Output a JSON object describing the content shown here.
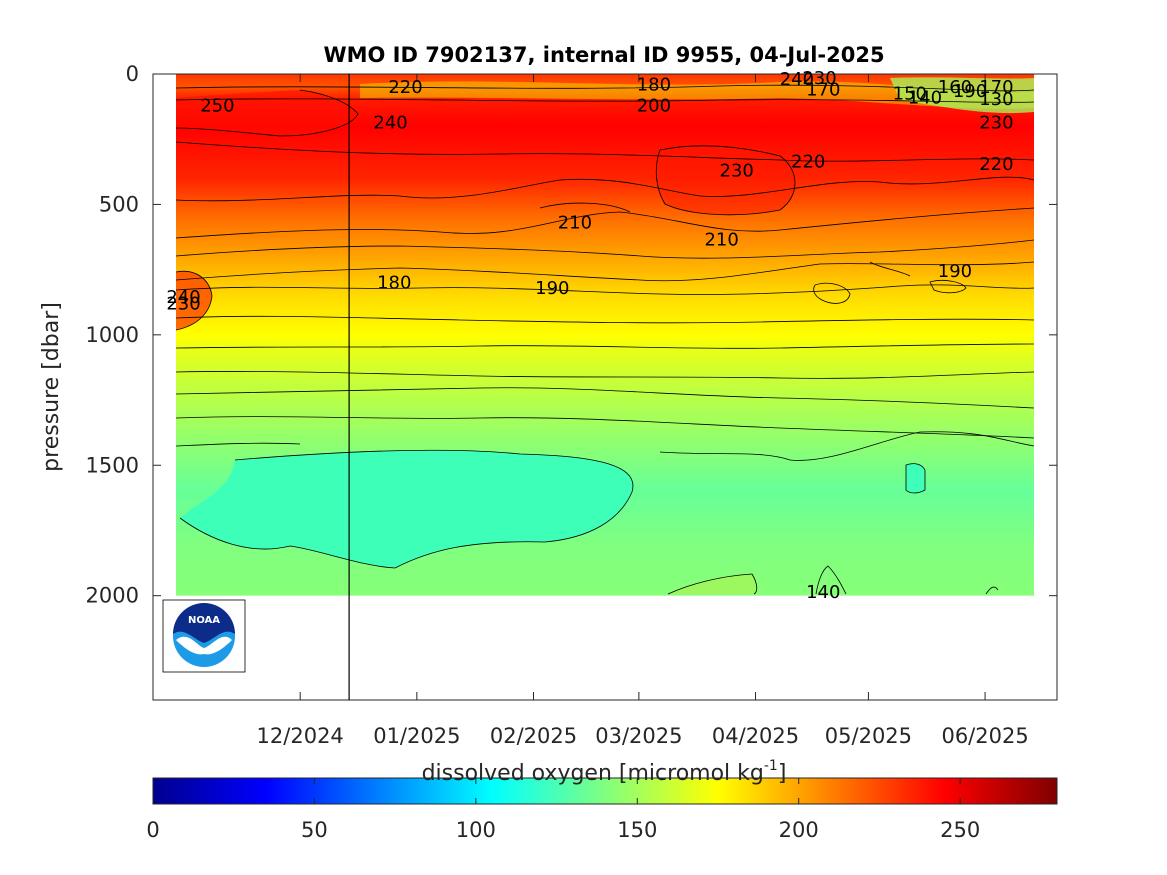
{
  "chart_data": {
    "type": "heatmap",
    "title": "WMO ID 7902137, internal ID 9955, 04-Jul-2025",
    "ylabel": "pressure [dbar]",
    "colorbar_label": "dissolved oxygen [micromol kg",
    "colorbar_label_exponent": "-1",
    "colorbar_label_close": "]",
    "x_ticks": [
      "12/2024",
      "01/2025",
      "02/2025",
      "03/2025",
      "04/2025",
      "05/2025",
      "06/2025"
    ],
    "y_ticks": [
      "0",
      "500",
      "1000",
      "1500",
      "2000"
    ],
    "y_tick_values": [
      0,
      500,
      1000,
      1500,
      2000
    ],
    "ylim": [
      0,
      2400
    ],
    "y_reversed": true,
    "colorbar_ticks": [
      "0",
      "50",
      "100",
      "150",
      "200",
      "250"
    ],
    "colorbar_tick_values": [
      0,
      50,
      100,
      150,
      200,
      250
    ],
    "clim": [
      0,
      280
    ],
    "colormap": "jet",
    "grid": false,
    "x_start": "2024-11-12",
    "x_end": "2025-06-28",
    "marker_date": "2024-12-28",
    "depth_profile": [
      {
        "pressure": 0,
        "oxygen": 230
      },
      {
        "pressure": 50,
        "oxygen": 222
      },
      {
        "pressure": 100,
        "oxygen": 238
      },
      {
        "pressure": 200,
        "oxygen": 245
      },
      {
        "pressure": 400,
        "oxygen": 235
      },
      {
        "pressure": 550,
        "oxygen": 215
      },
      {
        "pressure": 700,
        "oxygen": 200
      },
      {
        "pressure": 850,
        "oxygen": 185
      },
      {
        "pressure": 1000,
        "oxygen": 175
      },
      {
        "pressure": 1100,
        "oxygen": 165
      },
      {
        "pressure": 1250,
        "oxygen": 155
      },
      {
        "pressure": 1400,
        "oxygen": 145
      },
      {
        "pressure": 1600,
        "oxygen": 133
      },
      {
        "pressure": 1800,
        "oxygen": 140
      },
      {
        "pressure": 2000,
        "oxygen": 142
      }
    ],
    "contour_labels": [
      {
        "text": "250",
        "date": "2024-11-23",
        "pressure": 120
      },
      {
        "text": "220",
        "date": "2025-01-12",
        "pressure": 50
      },
      {
        "text": "240",
        "date": "2025-01-08",
        "pressure": 185
      },
      {
        "text": "180",
        "date": "2025-03-19",
        "pressure": 40
      },
      {
        "text": "200",
        "date": "2025-03-19",
        "pressure": 120
      },
      {
        "text": "240",
        "date": "2025-04-26",
        "pressure": 20
      },
      {
        "text": "230",
        "date": "2025-05-02",
        "pressure": 15
      },
      {
        "text": "170",
        "date": "2025-05-03",
        "pressure": 60
      },
      {
        "text": "150",
        "date": "2025-05-26",
        "pressure": 75
      },
      {
        "text": "140",
        "date": "2025-05-30",
        "pressure": 90
      },
      {
        "text": "160",
        "date": "2025-06-07",
        "pressure": 50
      },
      {
        "text": "190",
        "date": "2025-06-11",
        "pressure": 65
      },
      {
        "text": "170",
        "date": "2025-06-18",
        "pressure": 50
      },
      {
        "text": "130",
        "date": "2025-06-18",
        "pressure": 95
      },
      {
        "text": "230",
        "date": "2025-06-18",
        "pressure": 185
      },
      {
        "text": "220",
        "date": "2025-06-18",
        "pressure": 345
      },
      {
        "text": "230",
        "date": "2025-04-10",
        "pressure": 370
      },
      {
        "text": "220",
        "date": "2025-04-29",
        "pressure": 335
      },
      {
        "text": "210",
        "date": "2025-02-26",
        "pressure": 570
      },
      {
        "text": "210",
        "date": "2025-04-06",
        "pressure": 635
      },
      {
        "text": "190",
        "date": "2025-06-07",
        "pressure": 755
      },
      {
        "text": "180",
        "date": "2025-01-09",
        "pressure": 800
      },
      {
        "text": "190",
        "date": "2025-02-20",
        "pressure": 820
      },
      {
        "text": "240",
        "date": "2024-11-14",
        "pressure": 855
      },
      {
        "text": "230",
        "date": "2024-11-14",
        "pressure": 880
      },
      {
        "text": "140",
        "date": "2025-05-03",
        "pressure": 1985
      }
    ]
  }
}
